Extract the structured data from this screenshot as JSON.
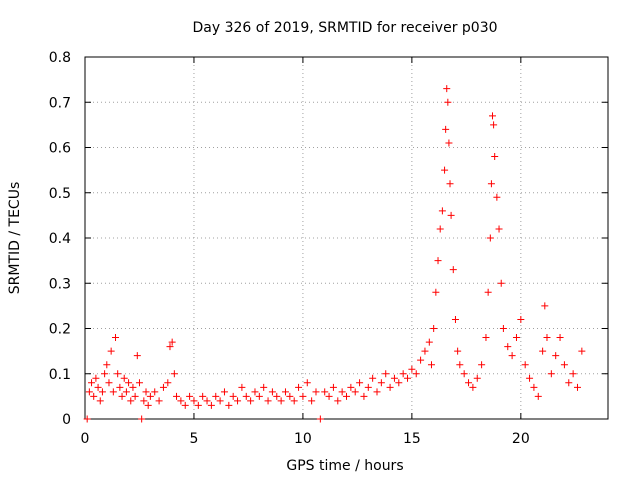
{
  "chart_data": {
    "type": "scatter",
    "title": "Day 326 of 2019, SRMTID for receiver p030",
    "xlabel": "GPS time / hours",
    "ylabel": "SRMTID / TECUs",
    "xlim": [
      0,
      24
    ],
    "ylim": [
      0,
      0.8
    ],
    "xticks": [
      0,
      5,
      10,
      15,
      20
    ],
    "xtick_labels": [
      "0",
      "5",
      "10",
      "15",
      "20"
    ],
    "yticks": [
      0,
      0.1,
      0.2,
      0.3,
      0.4,
      0.5,
      0.6,
      0.7,
      0.8
    ],
    "ytick_labels": [
      "0",
      "0.1",
      "0.2",
      "0.3",
      "0.4",
      "0.5",
      "0.6",
      "0.7",
      "0.8"
    ],
    "grid": true,
    "marker": "+",
    "color": "#ff0000",
    "series": [
      {
        "name": "SRMTID",
        "points": [
          [
            0.1,
            0.0
          ],
          [
            0.2,
            0.06
          ],
          [
            0.3,
            0.08
          ],
          [
            0.4,
            0.05
          ],
          [
            0.5,
            0.09
          ],
          [
            0.6,
            0.07
          ],
          [
            0.7,
            0.04
          ],
          [
            0.8,
            0.06
          ],
          [
            0.9,
            0.1
          ],
          [
            1.0,
            0.12
          ],
          [
            1.1,
            0.08
          ],
          [
            1.2,
            0.15
          ],
          [
            1.3,
            0.06
          ],
          [
            1.4,
            0.18
          ],
          [
            1.5,
            0.1
          ],
          [
            1.6,
            0.07
          ],
          [
            1.7,
            0.05
          ],
          [
            1.8,
            0.09
          ],
          [
            1.9,
            0.06
          ],
          [
            2.0,
            0.08
          ],
          [
            2.1,
            0.04
          ],
          [
            2.2,
            0.07
          ],
          [
            2.3,
            0.05
          ],
          [
            2.4,
            0.14
          ],
          [
            2.5,
            0.08
          ],
          [
            2.6,
            0.0
          ],
          [
            2.7,
            0.04
          ],
          [
            2.8,
            0.06
          ],
          [
            2.9,
            0.03
          ],
          [
            3.0,
            0.05
          ],
          [
            3.2,
            0.06
          ],
          [
            3.4,
            0.04
          ],
          [
            3.6,
            0.07
          ],
          [
            3.8,
            0.08
          ],
          [
            3.9,
            0.16
          ],
          [
            4.0,
            0.17
          ],
          [
            4.1,
            0.1
          ],
          [
            4.2,
            0.05
          ],
          [
            4.4,
            0.04
          ],
          [
            4.6,
            0.03
          ],
          [
            4.8,
            0.05
          ],
          [
            5.0,
            0.04
          ],
          [
            5.2,
            0.03
          ],
          [
            5.4,
            0.05
          ],
          [
            5.6,
            0.04
          ],
          [
            5.8,
            0.03
          ],
          [
            6.0,
            0.05
          ],
          [
            6.2,
            0.04
          ],
          [
            6.4,
            0.06
          ],
          [
            6.6,
            0.03
          ],
          [
            6.8,
            0.05
          ],
          [
            7.0,
            0.04
          ],
          [
            7.2,
            0.07
          ],
          [
            7.4,
            0.05
          ],
          [
            7.6,
            0.04
          ],
          [
            7.8,
            0.06
          ],
          [
            8.0,
            0.05
          ],
          [
            8.2,
            0.07
          ],
          [
            8.4,
            0.04
          ],
          [
            8.6,
            0.06
          ],
          [
            8.8,
            0.05
          ],
          [
            9.0,
            0.04
          ],
          [
            9.2,
            0.06
          ],
          [
            9.4,
            0.05
          ],
          [
            9.6,
            0.04
          ],
          [
            9.8,
            0.07
          ],
          [
            10.0,
            0.05
          ],
          [
            10.2,
            0.08
          ],
          [
            10.4,
            0.04
          ],
          [
            10.6,
            0.06
          ],
          [
            10.8,
            0.0
          ],
          [
            11.0,
            0.06
          ],
          [
            11.2,
            0.05
          ],
          [
            11.4,
            0.07
          ],
          [
            11.6,
            0.04
          ],
          [
            11.8,
            0.06
          ],
          [
            12.0,
            0.05
          ],
          [
            12.2,
            0.07
          ],
          [
            12.4,
            0.06
          ],
          [
            12.6,
            0.08
          ],
          [
            12.8,
            0.05
          ],
          [
            13.0,
            0.07
          ],
          [
            13.2,
            0.09
          ],
          [
            13.4,
            0.06
          ],
          [
            13.6,
            0.08
          ],
          [
            13.8,
            0.1
          ],
          [
            14.0,
            0.07
          ],
          [
            14.2,
            0.09
          ],
          [
            14.4,
            0.08
          ],
          [
            14.6,
            0.1
          ],
          [
            14.8,
            0.09
          ],
          [
            15.0,
            0.11
          ],
          [
            15.2,
            0.1
          ],
          [
            15.4,
            0.13
          ],
          [
            15.6,
            0.15
          ],
          [
            15.8,
            0.17
          ],
          [
            15.9,
            0.12
          ],
          [
            16.0,
            0.2
          ],
          [
            16.1,
            0.28
          ],
          [
            16.2,
            0.35
          ],
          [
            16.3,
            0.42
          ],
          [
            16.4,
            0.46
          ],
          [
            16.5,
            0.55
          ],
          [
            16.55,
            0.64
          ],
          [
            16.6,
            0.73
          ],
          [
            16.65,
            0.7
          ],
          [
            16.7,
            0.61
          ],
          [
            16.75,
            0.52
          ],
          [
            16.8,
            0.45
          ],
          [
            16.9,
            0.33
          ],
          [
            17.0,
            0.22
          ],
          [
            17.1,
            0.15
          ],
          [
            17.2,
            0.12
          ],
          [
            17.4,
            0.1
          ],
          [
            17.6,
            0.08
          ],
          [
            17.8,
            0.07
          ],
          [
            18.0,
            0.09
          ],
          [
            18.2,
            0.12
          ],
          [
            18.4,
            0.18
          ],
          [
            18.5,
            0.28
          ],
          [
            18.6,
            0.4
          ],
          [
            18.65,
            0.52
          ],
          [
            18.7,
            0.67
          ],
          [
            18.75,
            0.65
          ],
          [
            18.8,
            0.58
          ],
          [
            18.9,
            0.49
          ],
          [
            19.0,
            0.42
          ],
          [
            19.1,
            0.3
          ],
          [
            19.2,
            0.2
          ],
          [
            19.4,
            0.16
          ],
          [
            19.6,
            0.14
          ],
          [
            19.8,
            0.18
          ],
          [
            20.0,
            0.22
          ],
          [
            20.2,
            0.12
          ],
          [
            20.4,
            0.09
          ],
          [
            20.6,
            0.07
          ],
          [
            20.8,
            0.05
          ],
          [
            21.0,
            0.15
          ],
          [
            21.1,
            0.25
          ],
          [
            21.2,
            0.18
          ],
          [
            21.4,
            0.1
          ],
          [
            21.6,
            0.14
          ],
          [
            21.8,
            0.18
          ],
          [
            22.0,
            0.12
          ],
          [
            22.2,
            0.08
          ],
          [
            22.4,
            0.1
          ],
          [
            22.6,
            0.07
          ],
          [
            22.8,
            0.15
          ]
        ]
      }
    ]
  }
}
